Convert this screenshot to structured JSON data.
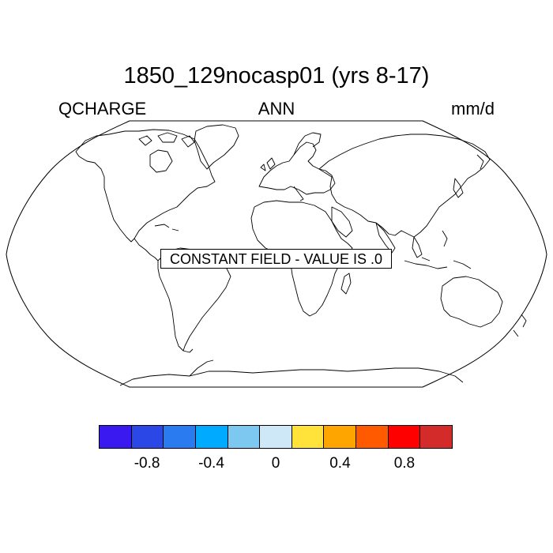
{
  "title": "1850_129nocasp01 (yrs 8-17)",
  "left_label": "QCHARGE",
  "center_label": "ANN",
  "right_label": "mm/d",
  "message": "CONSTANT FIELD - VALUE IS .0",
  "colorbar": {
    "colors": [
      "#3a19f0",
      "#2b47e6",
      "#2a7af0",
      "#00aaff",
      "#7cc8f0",
      "#cfe8f8",
      "#ffe23a",
      "#ffa500",
      "#ff5a00",
      "#ff0000",
      "#d32a2a"
    ],
    "tick_labels": [
      "-0.8",
      "-0.4",
      "0",
      "0.4",
      "0.8"
    ]
  },
  "map_projection": "robinson",
  "field_value": 0.0
}
